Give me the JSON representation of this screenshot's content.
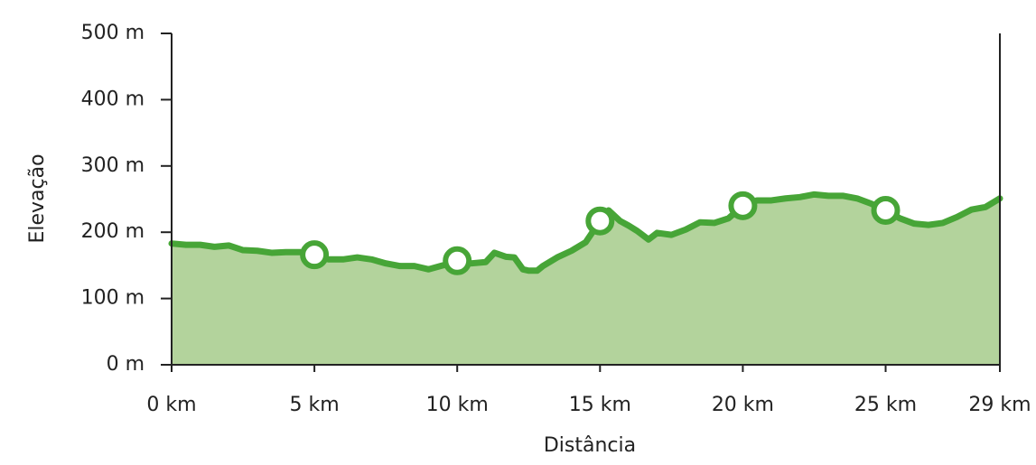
{
  "chart_data": {
    "type": "area",
    "xlabel": "Distância",
    "ylabel": "Elevação",
    "x": [
      0,
      0.5,
      1,
      1.5,
      2,
      2.5,
      3,
      3.5,
      4,
      4.5,
      5,
      5.5,
      6,
      6.5,
      7,
      7.5,
      8,
      8.5,
      9,
      9.5,
      10,
      10.5,
      11,
      11.3,
      11.7,
      12,
      12.3,
      12.5,
      12.8,
      13,
      13.5,
      14,
      14.5,
      15,
      15.3,
      15.7,
      16,
      16.3,
      16.7,
      17,
      17.5,
      18,
      18.5,
      19,
      19.5,
      20,
      20.5,
      21,
      21.5,
      22,
      22.5,
      23,
      23.5,
      24,
      24.5,
      25,
      25.5,
      26,
      26.5,
      27,
      27.5,
      28,
      28.5,
      29
    ],
    "values": [
      183,
      181,
      181,
      178,
      180,
      173,
      172,
      169,
      170,
      170,
      166,
      159,
      159,
      162,
      159,
      153,
      149,
      149,
      144,
      150,
      157,
      153,
      155,
      169,
      163,
      162,
      144,
      142,
      142,
      149,
      162,
      172,
      185,
      217,
      233,
      217,
      210,
      202,
      189,
      199,
      196,
      204,
      215,
      214,
      221,
      240,
      248,
      248,
      251,
      253,
      257,
      255,
      255,
      251,
      243,
      233,
      221,
      213,
      211,
      214,
      223,
      234,
      238,
      251
    ],
    "color": "#47a537",
    "fill_color": "#b3d39c",
    "xlim": [
      0,
      29
    ],
    "xticks": [
      {
        "value": 0,
        "label": "0 km"
      },
      {
        "value": 5,
        "label": "5 km"
      },
      {
        "value": 10,
        "label": "10 km"
      },
      {
        "value": 15,
        "label": "15 km"
      },
      {
        "value": 20,
        "label": "20 km"
      },
      {
        "value": 25,
        "label": "25 km"
      },
      {
        "value": 29,
        "label": "29 km"
      }
    ],
    "ylim": [
      0,
      500
    ],
    "yticks": [
      {
        "value": 0,
        "label": "0 m"
      },
      {
        "value": 100,
        "label": "100 m"
      },
      {
        "value": 200,
        "label": "200 m"
      },
      {
        "value": 300,
        "label": "300 m"
      },
      {
        "value": 400,
        "label": "400 m"
      },
      {
        "value": 500,
        "label": "500 m"
      }
    ]
  }
}
